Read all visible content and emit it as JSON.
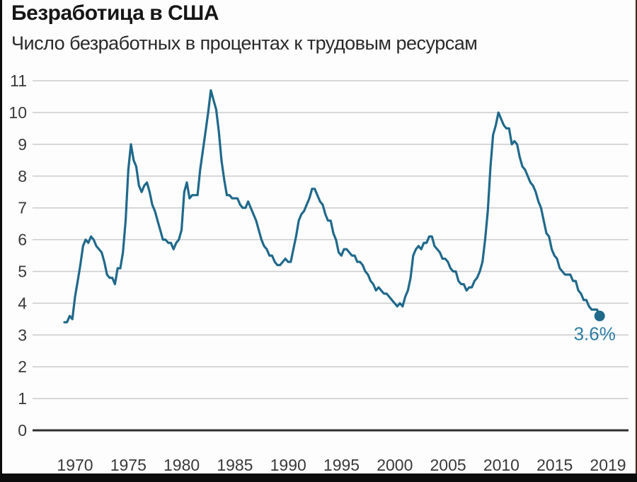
{
  "colors": {
    "line": "#20698b",
    "end_point": "#20698b",
    "end_label_text": "#2d7da3",
    "gridline": "#cccccc",
    "zero_axis_line": "#2e2e2e",
    "tick_text": "#3a3a3a",
    "title_text": "#161616",
    "subtitle_text": "#2a2a2a",
    "background": "#fdfdfd",
    "screenshot_border": "#0c0c0c"
  },
  "chart_data": {
    "type": "line",
    "title": "Безработица в США",
    "subtitle": "Число безработных в процентах к трудовым ресурсам",
    "xlabel": "",
    "ylabel": "",
    "ylim": [
      0,
      11
    ],
    "y_ticks": [
      0,
      1,
      2,
      3,
      4,
      5,
      6,
      7,
      8,
      9,
      10,
      11
    ],
    "x_tick_labels": [
      "1970",
      "1975",
      "1980",
      "1985",
      "1990",
      "1995",
      "2000",
      "2005",
      "2010",
      "2015",
      "2019"
    ],
    "grid": "horizontal gridlines, zero line emphasized",
    "legend": "none",
    "end_label": "3.6%",
    "end_value": 3.6,
    "series": [
      {
        "x_start": 1969.0,
        "x_step": 0.25,
        "x_end": 2019.25,
        "values": [
          3.4,
          3.4,
          3.6,
          3.5,
          4.2,
          4.7,
          5.2,
          5.8,
          6.0,
          5.9,
          6.1,
          6.0,
          5.8,
          5.7,
          5.6,
          5.3,
          4.9,
          4.8,
          4.8,
          4.6,
          5.1,
          5.1,
          5.6,
          6.6,
          8.2,
          9.0,
          8.5,
          8.3,
          7.7,
          7.5,
          7.7,
          7.8,
          7.5,
          7.1,
          6.9,
          6.6,
          6.3,
          6.0,
          6.0,
          5.9,
          5.9,
          5.7,
          5.9,
          6.0,
          6.3,
          7.5,
          7.8,
          7.3,
          7.4,
          7.4,
          7.4,
          8.2,
          8.8,
          9.4,
          10.0,
          10.7,
          10.4,
          10.1,
          9.4,
          8.5,
          7.9,
          7.4,
          7.4,
          7.3,
          7.3,
          7.3,
          7.1,
          7.0,
          7.0,
          7.2,
          7.0,
          6.8,
          6.6,
          6.3,
          6.0,
          5.8,
          5.7,
          5.5,
          5.5,
          5.3,
          5.2,
          5.2,
          5.3,
          5.4,
          5.3,
          5.3,
          5.7,
          6.1,
          6.6,
          6.8,
          6.9,
          7.1,
          7.3,
          7.6,
          7.6,
          7.4,
          7.2,
          7.1,
          6.8,
          6.6,
          6.6,
          6.2,
          6.0,
          5.6,
          5.5,
          5.7,
          5.7,
          5.6,
          5.5,
          5.5,
          5.3,
          5.3,
          5.2,
          5.0,
          4.9,
          4.7,
          4.6,
          4.4,
          4.5,
          4.4,
          4.3,
          4.3,
          4.2,
          4.1,
          4.0,
          3.9,
          4.0,
          3.9,
          4.2,
          4.4,
          4.8,
          5.5,
          5.7,
          5.8,
          5.7,
          5.9,
          5.9,
          6.1,
          6.1,
          5.8,
          5.7,
          5.6,
          5.4,
          5.4,
          5.3,
          5.1,
          5.0,
          5.0,
          4.7,
          4.6,
          4.6,
          4.4,
          4.5,
          4.5,
          4.7,
          4.8,
          5.0,
          5.3,
          6.0,
          6.9,
          8.3,
          9.3,
          9.6,
          10.0,
          9.8,
          9.6,
          9.5,
          9.5,
          9.0,
          9.1,
          9.0,
          8.6,
          8.3,
          8.2,
          8.0,
          7.8,
          7.7,
          7.5,
          7.2,
          7.0,
          6.6,
          6.2,
          6.1,
          5.7,
          5.5,
          5.4,
          5.1,
          5.0,
          4.9,
          4.9,
          4.9,
          4.7,
          4.7,
          4.4,
          4.3,
          4.1,
          4.1,
          3.9,
          3.8,
          3.8,
          3.8,
          3.6
        ]
      }
    ]
  }
}
